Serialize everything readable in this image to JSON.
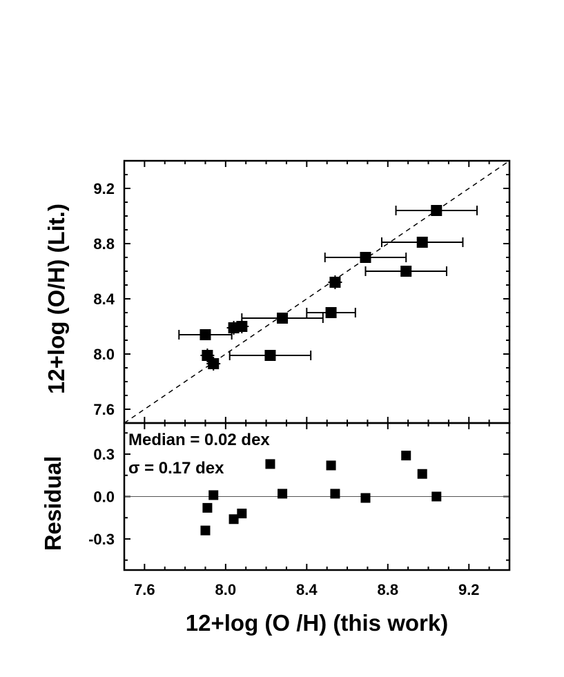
{
  "chart_data": [
    {
      "type": "scatter",
      "panel": "top",
      "ylabel": "12+log (O/H) (Lit.)",
      "xlim": [
        7.5,
        9.4
      ],
      "ylim": [
        7.5,
        9.4
      ],
      "x_ticks": [
        7.6,
        8.0,
        8.4,
        8.8,
        9.2
      ],
      "y_ticks": [
        "7.6",
        "8.0",
        "8.4",
        "8.8",
        "9.2"
      ],
      "reference_line": "y = x (dashed)",
      "series": [
        {
          "marker": "filled square",
          "points": [
            {
              "x": 7.9,
              "y": 8.14,
              "xerr": 0.13
            },
            {
              "x": 7.91,
              "y": 7.99,
              "xerr": 0.0
            },
            {
              "x": 7.94,
              "y": 7.93,
              "xerr": 0.0
            },
            {
              "x": 8.04,
              "y": 8.19,
              "xerr": 0.0
            },
            {
              "x": 8.08,
              "y": 8.2,
              "xerr": 0.0
            },
            {
              "x": 8.22,
              "y": 7.99,
              "xerr": 0.2
            },
            {
              "x": 8.28,
              "y": 8.26,
              "xerr": 0.2
            },
            {
              "x": 8.52,
              "y": 8.3,
              "xerr": 0.12
            },
            {
              "x": 8.54,
              "y": 8.52,
              "xerr": 0.0
            },
            {
              "x": 8.69,
              "y": 8.7,
              "xerr": 0.2
            },
            {
              "x": 8.89,
              "y": 8.6,
              "xerr": 0.2
            },
            {
              "x": 8.97,
              "y": 8.81,
              "xerr": 0.2
            },
            {
              "x": 9.04,
              "y": 9.04,
              "xerr": 0.2
            }
          ]
        }
      ]
    },
    {
      "type": "scatter",
      "panel": "bottom",
      "xlabel": "12+log (O /H) (this work)",
      "ylabel": "Residual",
      "xlim": [
        7.5,
        9.4
      ],
      "ylim": [
        -0.52,
        0.52
      ],
      "x_ticks": [
        "7.6",
        "8.0",
        "8.4",
        "8.8",
        "9.2"
      ],
      "y_ticks": [
        "-0.3",
        "0.0",
        "0.3"
      ],
      "reference_line": "y = 0 (solid)",
      "annotations": [
        "Median = 0.02 dex",
        "σ = 0.17 dex"
      ],
      "series": [
        {
          "marker": "filled square",
          "points": [
            {
              "x": 7.9,
              "y": -0.24
            },
            {
              "x": 7.91,
              "y": -0.08
            },
            {
              "x": 7.94,
              "y": 0.01
            },
            {
              "x": 8.04,
              "y": -0.16
            },
            {
              "x": 8.08,
              "y": -0.12
            },
            {
              "x": 8.22,
              "y": 0.23
            },
            {
              "x": 8.28,
              "y": 0.02
            },
            {
              "x": 8.52,
              "y": 0.22
            },
            {
              "x": 8.54,
              "y": 0.02
            },
            {
              "x": 8.69,
              "y": -0.01
            },
            {
              "x": 8.89,
              "y": 0.29
            },
            {
              "x": 8.97,
              "y": 0.16
            },
            {
              "x": 9.04,
              "y": 0.0
            }
          ]
        }
      ]
    }
  ]
}
